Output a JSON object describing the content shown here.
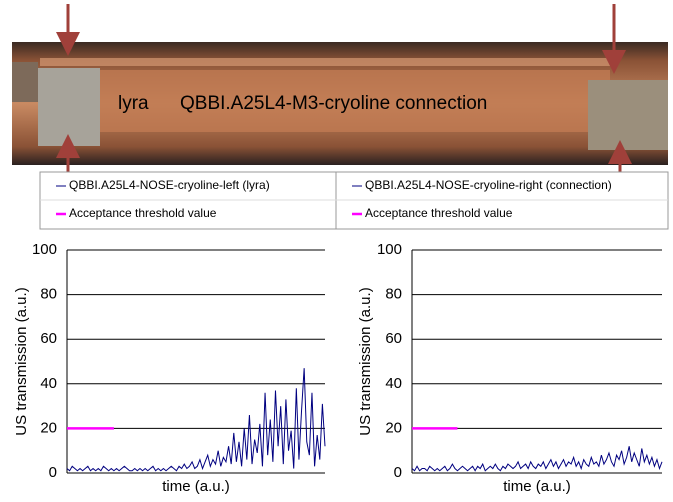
{
  "photo": {
    "caption_left": "lyra",
    "caption": "QBBI.A25L4-M3-cryoline  connection"
  },
  "chart_data": [
    {
      "type": "line",
      "y_label": "US transmission (a.u.)",
      "x_label": "time (a.u.)",
      "ylim": [
        0,
        100
      ],
      "yticks": [
        0,
        20,
        40,
        60,
        80,
        100
      ],
      "grid": true,
      "series": [
        {
          "name": "QBBI.A25L4-NOSE-cryoline-left (lyra)",
          "color": "#000080",
          "values": [
            2,
            1,
            3,
            2,
            1,
            2,
            1,
            2,
            3,
            1,
            2,
            1,
            2,
            1,
            3,
            2,
            1,
            2,
            1,
            2,
            1,
            2,
            3,
            2,
            1,
            1,
            2,
            1,
            2,
            1,
            2,
            1,
            2,
            3,
            1,
            2,
            1,
            2,
            1,
            2,
            3,
            2,
            1,
            3,
            2,
            4,
            2,
            3,
            5,
            2,
            3,
            6,
            2,
            5,
            8,
            3,
            6,
            4,
            10,
            3,
            7,
            5,
            12,
            4,
            18,
            5,
            14,
            3,
            20,
            6,
            26,
            4,
            15,
            9,
            22,
            3,
            36,
            8,
            24,
            5,
            37,
            12,
            30,
            4,
            33,
            10,
            19,
            2,
            38,
            6,
            28,
            47,
            14,
            8,
            36,
            3,
            17,
            6,
            31,
            12
          ]
        },
        {
          "name": "Acceptance threshold value",
          "color": "#ff00ff",
          "values": [
            20,
            20,
            20,
            20,
            20,
            20,
            20,
            20,
            20,
            20,
            20,
            20,
            20,
            20,
            20,
            20,
            20,
            20,
            20,
            null,
            null,
            null,
            null,
            null,
            null,
            null,
            null,
            null,
            null,
            null,
            null,
            null,
            null,
            null,
            null,
            null,
            null,
            null,
            null,
            null,
            null,
            null,
            null,
            null,
            null,
            null,
            null,
            null,
            null,
            null,
            null,
            null,
            null,
            null,
            null,
            null,
            null,
            null,
            null,
            null,
            null,
            null,
            null,
            null,
            null,
            null,
            null,
            null,
            null,
            null,
            null,
            null,
            null,
            null,
            null,
            null,
            null,
            null,
            null,
            null,
            null,
            null,
            null,
            null,
            null,
            null,
            null,
            null,
            null,
            null,
            null,
            null,
            null,
            null,
            null,
            null,
            null,
            null,
            null,
            null
          ]
        }
      ]
    },
    {
      "type": "line",
      "y_label": "US transmission (a.u.)",
      "x_label": "time (a.u.)",
      "ylim": [
        0,
        100
      ],
      "yticks": [
        0,
        20,
        40,
        60,
        80,
        100
      ],
      "grid": true,
      "series": [
        {
          "name": "QBBI.A25L4-NOSE-cryoline-right (connection)",
          "color": "#000080",
          "values": [
            2,
            1,
            3,
            1,
            2,
            2,
            1,
            3,
            2,
            1,
            2,
            1,
            2,
            3,
            1,
            2,
            4,
            2,
            1,
            2,
            3,
            2,
            1,
            2,
            3,
            1,
            3,
            2,
            4,
            1,
            2,
            3,
            2,
            4,
            2,
            1,
            3,
            2,
            4,
            3,
            2,
            3,
            5,
            2,
            3,
            4,
            2,
            5,
            3,
            2,
            4,
            3,
            5,
            2,
            4,
            6,
            3,
            5,
            2,
            4,
            6,
            3,
            5,
            4,
            7,
            3,
            5,
            2,
            6,
            4,
            3,
            7,
            4,
            5,
            3,
            8,
            4,
            6,
            9,
            5,
            3,
            8,
            6,
            10,
            4,
            7,
            12,
            5,
            9,
            6,
            3,
            11,
            5,
            8,
            4,
            7,
            3,
            6,
            2,
            5
          ]
        },
        {
          "name": "Acceptance threshold value",
          "color": "#ff00ff",
          "values": [
            20,
            20,
            20,
            20,
            20,
            20,
            20,
            20,
            20,
            20,
            20,
            20,
            20,
            20,
            20,
            20,
            20,
            20,
            20,
            null,
            null,
            null,
            null,
            null,
            null,
            null,
            null,
            null,
            null,
            null,
            null,
            null,
            null,
            null,
            null,
            null,
            null,
            null,
            null,
            null,
            null,
            null,
            null,
            null,
            null,
            null,
            null,
            null,
            null,
            null,
            null,
            null,
            null,
            null,
            null,
            null,
            null,
            null,
            null,
            null,
            null,
            null,
            null,
            null,
            null,
            null,
            null,
            null,
            null,
            null,
            null,
            null,
            null,
            null,
            null,
            null,
            null,
            null,
            null,
            null,
            null,
            null,
            null,
            null,
            null,
            null,
            null,
            null,
            null,
            null,
            null,
            null,
            null,
            null,
            null,
            null,
            null,
            null,
            null,
            null
          ]
        }
      ]
    }
  ]
}
